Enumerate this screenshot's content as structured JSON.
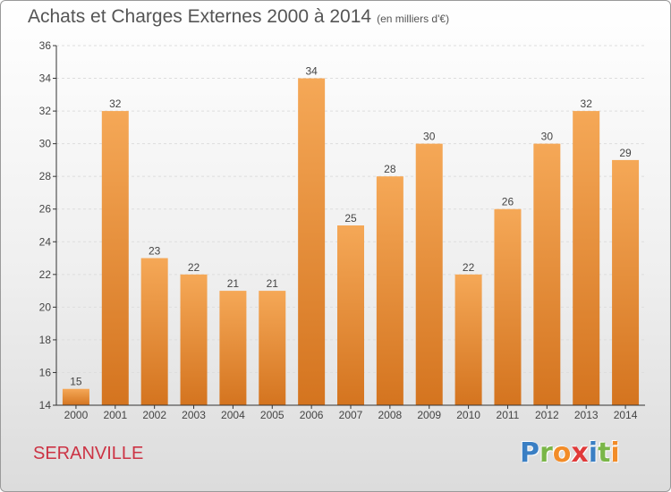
{
  "title": "Achats et Charges Externes 2000 à 2014",
  "unit_note": "(en milliers d'€)",
  "commune": "SERANVILLE",
  "logo": {
    "text": "Proxiti",
    "letter_colors": [
      "#3a7fc4",
      "#7ab648",
      "#f28c28",
      "#e03a3a",
      "#3a7fc4",
      "#7ab648",
      "#f28c28"
    ]
  },
  "colors": {
    "bar_top": "#f5a857",
    "bar_bottom": "#d4741f",
    "axis": "#333333",
    "grid": "#dddddd",
    "text": "#444444"
  },
  "chart_data": {
    "type": "bar",
    "categories": [
      "2000",
      "2001",
      "2002",
      "2003",
      "2004",
      "2005",
      "2006",
      "2007",
      "2008",
      "2009",
      "2010",
      "2011",
      "2012",
      "2013",
      "2014"
    ],
    "values": [
      15,
      32,
      23,
      22,
      21,
      21,
      34,
      25,
      28,
      30,
      22,
      26,
      30,
      32,
      29
    ],
    "ylim": [
      14,
      36
    ],
    "yticks": [
      14,
      16,
      18,
      20,
      22,
      24,
      26,
      28,
      30,
      32,
      34,
      36
    ],
    "grid": "horizontal dashed",
    "xlabel": "",
    "ylabel": ""
  }
}
